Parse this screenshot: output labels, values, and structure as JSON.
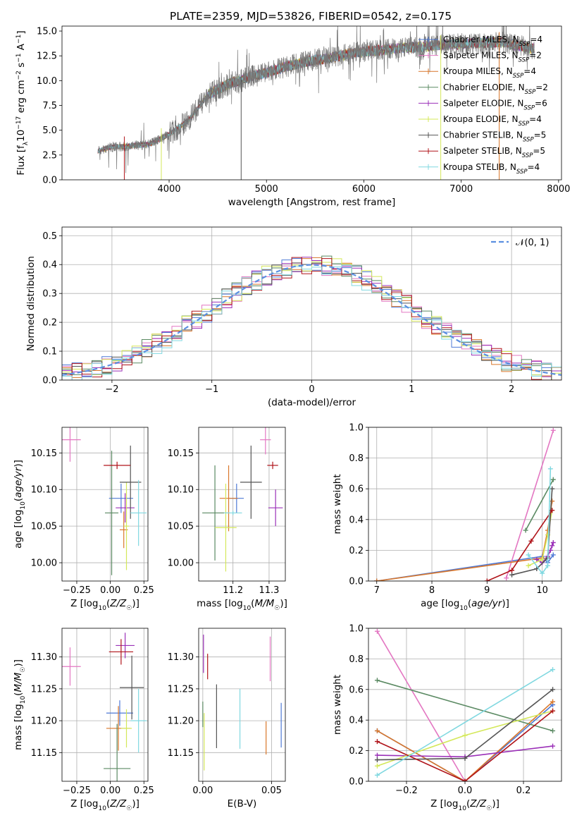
{
  "figure": {
    "title": "PLATE=2359, MJD=53826, FIBERID=0542, z=0.175"
  },
  "legend_entries": [
    {
      "label": "Chabrier MILES, N_SSP=4",
      "color": "#4e79d6"
    },
    {
      "label": "Salpeter MILES, N_SSP=2",
      "color": "#e377c2"
    },
    {
      "label": "Kroupa MILES, N_SSP=4",
      "color": "#d9772b"
    },
    {
      "label": "Chabrier ELODIE, N_SSP=2",
      "color": "#5b8a63"
    },
    {
      "label": "Salpeter ELODIE, N_SSP=6",
      "color": "#9b30b8"
    },
    {
      "label": "Kroupa ELODIE, N_SSP=4",
      "color": "#d4e85a"
    },
    {
      "label": "Chabrier STELIB, N_SSP=5",
      "color": "#555555"
    },
    {
      "label": "Salpeter STELIB, N_SSP=5",
      "color": "#b0141a"
    },
    {
      "label": "Kroupa STELIB, N_SSP=4",
      "color": "#80d8e0"
    }
  ],
  "chart_data": [
    {
      "id": "spectrum",
      "type": "line",
      "xlabel": "wavelength [Angstrom, rest frame]",
      "ylabel": "Flux [f_λ 10^-17 erg cm^-2 s^-1 A^-1]",
      "xlim": [
        2900,
        8030
      ],
      "ylim": [
        0,
        15.5
      ],
      "xticks": [
        "4000",
        "5000",
        "6000",
        "7000",
        "8000"
      ],
      "yticks": [
        "0.0",
        "2.5",
        "5.0",
        "7.5",
        "10.0",
        "12.5",
        "15.0"
      ],
      "observed_color": "#777777",
      "observed_envelope": {
        "wavelength": [
          3270,
          3400,
          3600,
          3800,
          4000,
          4200,
          4400,
          4600,
          4800,
          5000,
          5200,
          5400,
          5600,
          5800,
          6000,
          6200,
          6400,
          6600,
          6800,
          7000,
          7200,
          7400,
          7600,
          7750
        ],
        "flux": [
          2.9,
          3.3,
          3.4,
          3.6,
          4.6,
          6.0,
          8.6,
          9.6,
          10.3,
          10.8,
          11.4,
          11.9,
          12.2,
          12.6,
          12.9,
          13.1,
          13.3,
          13.4,
          13.6,
          13.7,
          13.8,
          13.9,
          13.5,
          13.2
        ]
      },
      "model_drop_lines": [
        {
          "series": "Salpeter STELIB",
          "wavelength": 3540
        },
        {
          "series": "Kroupa ELODIE",
          "wavelength": 3920
        },
        {
          "series": "Chabrier STELIB",
          "wavelength": 4740
        },
        {
          "series": "Kroupa ELODIE",
          "wavelength": 6790
        },
        {
          "series": "Kroupa MILES",
          "wavelength": 7390
        }
      ],
      "grid": false,
      "legend": "upper-right"
    },
    {
      "id": "residuals",
      "type": "histogram",
      "xlabel": "(data-model)/error",
      "ylabel": "Normed distribution",
      "xlim": [
        -2.5,
        2.5
      ],
      "ylim": [
        0,
        0.53
      ],
      "xticks": [
        "−2",
        "−1",
        "0",
        "1",
        "2"
      ],
      "yticks": [
        "0.0",
        "0.1",
        "0.2",
        "0.3",
        "0.4",
        "0.5"
      ],
      "reference_curve": {
        "label": "𝒩(0, 1)",
        "mean": 0,
        "sigma": 1,
        "color": "#5b8fe0",
        "style": "dashed"
      },
      "bin_width": 0.1,
      "grid": true,
      "legend": "upper-right"
    },
    {
      "id": "age-vs-Z",
      "type": "errorbar",
      "xlabel": "Z [log10(Z/Z☉)]",
      "ylabel": "age [log10(age/yr)]",
      "xlim": [
        -0.36,
        0.28
      ],
      "ylim": [
        9.975,
        10.185
      ],
      "xticks": [
        "−0.25",
        "0.00",
        "0.25"
      ],
      "yticks": [
        "10.00",
        "10.05",
        "10.10",
        "10.15"
      ],
      "points": [
        {
          "series": "Chabrier MILES",
          "x": 0.08,
          "xerr": 0.09,
          "y": 10.088,
          "yerr": 0.02
        },
        {
          "series": "Salpeter MILES",
          "x": -0.3,
          "xerr": 0.08,
          "y": 10.168,
          "yerr": 0.03
        },
        {
          "series": "Kroupa MILES",
          "x": 0.1,
          "xerr": 0.03,
          "y": 10.045,
          "yerr": 0.025
        },
        {
          "series": "Chabrier ELODIE",
          "x": 0.01,
          "xerr": 0.05,
          "y": 10.068,
          "yerr": 0.085
        },
        {
          "series": "Salpeter ELODIE",
          "x": 0.11,
          "xerr": 0.07,
          "y": 10.075,
          "yerr": 0.02
        },
        {
          "series": "Kroupa ELODIE",
          "x": 0.12,
          "xerr": 0.02,
          "y": 10.05,
          "yerr": 0.06
        },
        {
          "series": "Chabrier STELIB",
          "x": 0.15,
          "xerr": 0.08,
          "y": 10.11,
          "yerr": 0.05
        },
        {
          "series": "Salpeter STELIB",
          "x": 0.05,
          "xerr": 0.1,
          "y": 10.133,
          "yerr": 0.005
        },
        {
          "series": "Kroupa STELIB",
          "x": 0.21,
          "xerr": 0.06,
          "y": 10.068,
          "yerr": 0.045
        }
      ]
    },
    {
      "id": "age-vs-mass",
      "type": "errorbar",
      "xlabel": "mass [log10(M/M☉)]",
      "ylabel": "",
      "xlim": [
        11.105,
        11.345
      ],
      "ylim": [
        9.975,
        10.185
      ],
      "xticks": [
        "11.2",
        "11.3"
      ],
      "yticks": [
        "10.00",
        "10.05",
        "10.10",
        "10.15"
      ],
      "points": [
        {
          "series": "Chabrier MILES",
          "x": 11.21,
          "xerr": 0.02,
          "y": 10.088,
          "yerr": 0.02
        },
        {
          "series": "Salpeter MILES",
          "x": 11.29,
          "xerr": 0.015,
          "y": 10.168,
          "yerr": 0.02
        },
        {
          "series": "Kroupa MILES",
          "x": 11.188,
          "xerr": 0.025,
          "y": 10.088,
          "yerr": 0.045
        },
        {
          "series": "Chabrier ELODIE",
          "x": 11.15,
          "xerr": 0.035,
          "y": 10.068,
          "yerr": 0.065
        },
        {
          "series": "Salpeter ELODIE",
          "x": 11.318,
          "xerr": 0.02,
          "y": 10.075,
          "yerr": 0.025
        },
        {
          "series": "Kroupa ELODIE",
          "x": 11.18,
          "xerr": 0.03,
          "y": 10.048,
          "yerr": 0.06
        },
        {
          "series": "Chabrier STELIB",
          "x": 11.25,
          "xerr": 0.03,
          "y": 10.11,
          "yerr": 0.05
        },
        {
          "series": "Salpeter STELIB",
          "x": 11.31,
          "xerr": 0.015,
          "y": 10.133,
          "yerr": 0.005
        },
        {
          "series": "Kroupa STELIB",
          "x": 11.2,
          "xerr": 0.025,
          "y": 10.068,
          "yerr": 0.003
        }
      ]
    },
    {
      "id": "weight-vs-age",
      "type": "line",
      "xlabel": "age [log10(age/yr)]",
      "ylabel": "mass weight",
      "xlim": [
        6.85,
        10.35
      ],
      "ylim": [
        0,
        1
      ],
      "xticks": [
        "7",
        "8",
        "9",
        "10"
      ],
      "yticks": [
        "0.0",
        "0.2",
        "0.4",
        "0.6",
        "0.8",
        "1.0"
      ],
      "grid": true,
      "series": [
        {
          "name": "Chabrier MILES",
          "x": [
            7.0,
            10.0,
            10.1,
            10.2
          ],
          "y": [
            0.0,
            0.16,
            0.12,
            0.17
          ]
        },
        {
          "name": "Salpeter MILES",
          "x": [
            9.35,
            10.2
          ],
          "y": [
            0.02,
            0.98
          ]
        },
        {
          "name": "Kroupa MILES",
          "x": [
            7.0,
            10.0,
            10.1,
            10.18
          ],
          "y": [
            0.0,
            0.15,
            0.33,
            0.52
          ]
        },
        {
          "name": "Chabrier ELODIE",
          "x": [
            9.7,
            10.2
          ],
          "y": [
            0.33,
            0.66
          ]
        },
        {
          "name": "Salpeter ELODIE",
          "x": [
            9.9,
            10.0,
            10.1,
            10.15,
            10.18,
            10.2
          ],
          "y": [
            0.14,
            0.12,
            0.16,
            0.2,
            0.23,
            0.25
          ]
        },
        {
          "name": "Kroupa ELODIE",
          "x": [
            9.75,
            10.0,
            10.1,
            10.18
          ],
          "y": [
            0.1,
            0.14,
            0.3,
            0.46
          ]
        },
        {
          "name": "Chabrier STELIB",
          "x": [
            9.45,
            9.9,
            10.1,
            10.18
          ],
          "y": [
            0.04,
            0.08,
            0.15,
            0.6
          ]
        },
        {
          "name": "Salpeter STELIB",
          "x": [
            9.0,
            9.45,
            9.8,
            10.18
          ],
          "y": [
            0.0,
            0.07,
            0.26,
            0.46
          ]
        },
        {
          "name": "Kroupa STELIB",
          "x": [
            9.75,
            10.0,
            10.1,
            10.15
          ],
          "y": [
            0.17,
            0.05,
            0.1,
            0.73
          ]
        }
      ]
    },
    {
      "id": "mass-vs-Z",
      "type": "errorbar",
      "xlabel": "Z [log10(Z/Z☉)]",
      "ylabel": "mass [log10(M/M☉)]",
      "xlim": [
        -0.36,
        0.28
      ],
      "ylim": [
        11.105,
        11.345
      ],
      "xticks": [
        "−0.25",
        "0.00",
        "0.25"
      ],
      "yticks": [
        "11.15",
        "11.20",
        "11.25",
        "11.30"
      ],
      "points": [
        {
          "series": "Chabrier MILES",
          "x": 0.07,
          "xerr": 0.1,
          "y": 11.212,
          "yerr": 0.02
        },
        {
          "series": "Salpeter MILES",
          "x": -0.3,
          "xerr": 0.08,
          "y": 11.285,
          "yerr": 0.03
        },
        {
          "series": "Kroupa MILES",
          "x": 0.06,
          "xerr": 0.09,
          "y": 11.188,
          "yerr": 0.035
        },
        {
          "series": "Chabrier ELODIE",
          "x": 0.05,
          "xerr": 0.1,
          "y": 11.125,
          "yerr": 0.07
        },
        {
          "series": "Salpeter ELODIE",
          "x": 0.11,
          "xerr": 0.07,
          "y": 11.318,
          "yerr": 0.02
        },
        {
          "series": "Kroupa ELODIE",
          "x": 0.12,
          "xerr": 0.04,
          "y": 11.188,
          "yerr": 0.03
        },
        {
          "series": "Chabrier STELIB",
          "x": 0.16,
          "xerr": 0.09,
          "y": 11.252,
          "yerr": 0.05
        },
        {
          "series": "Salpeter STELIB",
          "x": 0.08,
          "xerr": 0.09,
          "y": 11.308,
          "yerr": 0.02
        },
        {
          "series": "Kroupa STELIB",
          "x": 0.21,
          "xerr": 0.06,
          "y": 11.2,
          "yerr": 0.05
        }
      ]
    },
    {
      "id": "mass-vs-ebv",
      "type": "errorbar",
      "xlabel": "E(B-V)",
      "ylabel": "",
      "xlim": [
        -0.003,
        0.06
      ],
      "ylim": [
        11.105,
        11.345
      ],
      "xticks": [
        "0.00",
        "0.05"
      ],
      "yticks": [
        "11.15",
        "11.20",
        "11.25",
        "11.30"
      ],
      "points": [
        {
          "series": "Chabrier MILES",
          "x": 0.057,
          "yerr": 0.035,
          "y": 11.193
        },
        {
          "series": "Salpeter MILES",
          "x": 0.049,
          "yerr": 0.035,
          "y": 11.297
        },
        {
          "series": "Kroupa MILES",
          "x": 0.046,
          "yerr": 0.026,
          "y": 11.173
        },
        {
          "series": "Chabrier ELODIE",
          "x": 0.0,
          "yerr": 0.02,
          "y": 11.21
        },
        {
          "series": "Salpeter ELODIE",
          "x": 0.0005,
          "yerr": 0.03,
          "y": 11.305
        },
        {
          "series": "Kroupa ELODIE",
          "x": 0.001,
          "yerr": 0.045,
          "y": 11.167
        },
        {
          "series": "Chabrier STELIB",
          "x": 0.01,
          "yerr": 0.05,
          "y": 11.207
        },
        {
          "series": "Salpeter STELIB",
          "x": 0.0035,
          "yerr": 0.02,
          "y": 11.285
        },
        {
          "series": "Kroupa STELIB",
          "x": 0.027,
          "yerr": 0.047,
          "y": 11.203
        }
      ]
    },
    {
      "id": "weight-vs-Z",
      "type": "line",
      "xlabel": "Z [log10(Z/Z☉)]",
      "ylabel": "mass weight",
      "xlim": [
        -0.33,
        0.33
      ],
      "ylim": [
        0,
        1
      ],
      "xticks": [
        "−0.2",
        "0.0",
        "0.2"
      ],
      "yticks": [
        "0.0",
        "0.2",
        "0.4",
        "0.6",
        "0.8",
        "1.0"
      ],
      "grid": true,
      "series": [
        {
          "name": "Chabrier MILES",
          "x": [
            -0.3,
            0.0,
            0.3
          ],
          "y": [
            0.33,
            0.0,
            0.5
          ]
        },
        {
          "name": "Salpeter MILES",
          "x": [
            -0.3,
            0.0
          ],
          "y": [
            0.98,
            0.0
          ]
        },
        {
          "name": "Kroupa MILES",
          "x": [
            -0.3,
            0.0,
            0.3
          ],
          "y": [
            0.33,
            0.0,
            0.52
          ]
        },
        {
          "name": "Chabrier ELODIE",
          "x": [
            -0.3,
            0.3
          ],
          "y": [
            0.66,
            0.33
          ]
        },
        {
          "name": "Salpeter ELODIE",
          "x": [
            -0.3,
            0.0,
            0.3
          ],
          "y": [
            0.17,
            0.16,
            0.23
          ]
        },
        {
          "name": "Kroupa ELODIE",
          "x": [
            -0.3,
            0.0,
            0.3
          ],
          "y": [
            0.1,
            0.3,
            0.46
          ]
        },
        {
          "name": "Chabrier STELIB",
          "x": [
            -0.3,
            0.0,
            0.3
          ],
          "y": [
            0.14,
            0.15,
            0.6
          ]
        },
        {
          "name": "Salpeter STELIB",
          "x": [
            -0.3,
            0.0,
            0.3
          ],
          "y": [
            0.26,
            0.0,
            0.46
          ]
        },
        {
          "name": "Kroupa STELIB",
          "x": [
            -0.3,
            0.3
          ],
          "y": [
            0.04,
            0.73
          ]
        }
      ]
    }
  ]
}
